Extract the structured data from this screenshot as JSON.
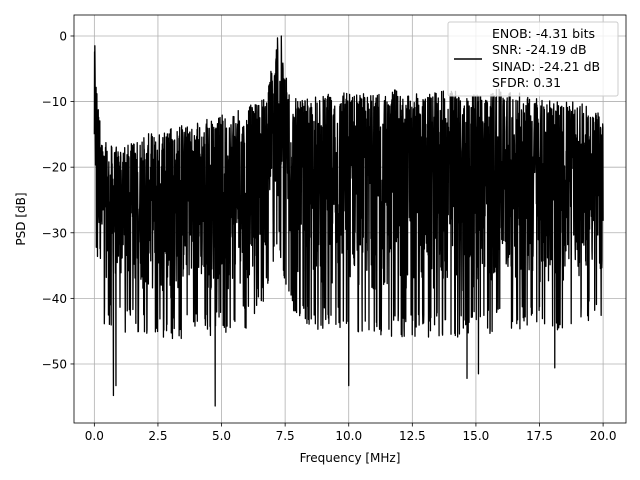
{
  "chart_data": {
    "type": "line",
    "title": "",
    "xlabel": "Frequency [MHz]",
    "ylabel": "PSD [dB]",
    "xlim": [
      -0.8,
      20.9
    ],
    "ylim": [
      -59,
      3.2
    ],
    "xticks": [
      0.0,
      2.5,
      5.0,
      7.5,
      10.0,
      12.5,
      15.0,
      17.5,
      20.0
    ],
    "xtick_labels": [
      "0.0",
      "2.5",
      "5.0",
      "7.5",
      "10.0",
      "12.5",
      "15.0",
      "17.5",
      "20.0"
    ],
    "yticks": [
      0,
      -10,
      -20,
      -30,
      -40,
      -50
    ],
    "ytick_labels": [
      "0",
      "−10",
      "−20",
      "−30",
      "−40",
      "−50"
    ],
    "grid": true,
    "legend_position": "top-right",
    "legend": {
      "lines": [
        "ENOB: -4.31 bits",
        "SNR: -24.19 dB",
        "SINAD: -24.21 dB",
        "SFDR: 0.31"
      ]
    },
    "series": [
      {
        "color": "#000000",
        "x_range": [
          0.0,
          20.0
        ],
        "description": "dense noise-like power spectral density trace",
        "envelope": {
          "x": [
            0.0,
            0.3,
            1.0,
            2.0,
            3.0,
            4.0,
            5.0,
            6.0,
            6.8,
            7.2,
            7.6,
            8.0,
            9.0,
            10.0,
            11.0,
            12.0,
            13.0,
            14.0,
            15.0,
            16.0,
            17.0,
            18.0,
            19.0,
            20.0
          ],
          "upper": [
            -2,
            -16,
            -17,
            -15,
            -14,
            -13,
            -12,
            -11,
            -8,
            0,
            -7,
            -10,
            -9,
            -8,
            -9,
            -8,
            -9,
            -8,
            -9,
            -8,
            -9,
            -10,
            -10,
            -12
          ],
          "lower": [
            -27,
            -40,
            -41,
            -42,
            -43,
            -42,
            -42,
            -41,
            -36,
            -28,
            -36,
            -40,
            -41,
            -41,
            -42,
            -42,
            -42,
            -42,
            -42,
            -41,
            -41,
            -41,
            -40,
            -40
          ]
        },
        "peaks": [
          {
            "x": 0.02,
            "y": -1.5
          },
          {
            "x": 7.2,
            "y": -0.3
          },
          {
            "x": 7.35,
            "y": 0.0
          }
        ],
        "dips": [
          {
            "x": 0.75,
            "y": -54.8
          },
          {
            "x": 0.85,
            "y": -53.3
          },
          {
            "x": 4.75,
            "y": -56.4
          },
          {
            "x": 10.0,
            "y": -53.3
          },
          {
            "x": 14.65,
            "y": -52.2
          },
          {
            "x": 15.1,
            "y": -51.5
          },
          {
            "x": 18.1,
            "y": -50.6
          }
        ]
      }
    ]
  }
}
